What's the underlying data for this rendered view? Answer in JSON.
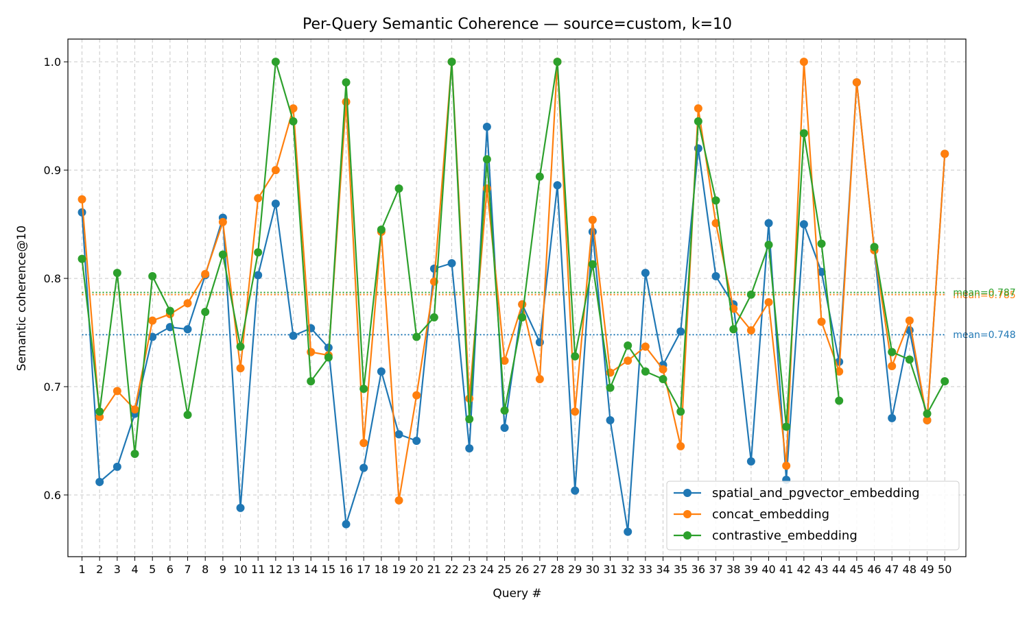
{
  "chart_data": {
    "type": "line",
    "title": "Per-Query Semantic Coherence — source=custom, k=10",
    "xlabel": "Query #",
    "ylabel": "Semantic coherence@10",
    "x": [
      1,
      2,
      3,
      4,
      5,
      6,
      7,
      8,
      9,
      10,
      11,
      12,
      13,
      14,
      15,
      16,
      17,
      18,
      19,
      20,
      21,
      22,
      23,
      24,
      25,
      26,
      27,
      28,
      29,
      30,
      31,
      32,
      33,
      34,
      35,
      36,
      37,
      38,
      39,
      40,
      41,
      42,
      43,
      44,
      45,
      46,
      47,
      48,
      49,
      50
    ],
    "xlim": [
      0.2,
      51.2
    ],
    "ylim": [
      0.543,
      1.021
    ],
    "yticks": [
      0.6,
      0.7,
      0.8,
      0.9,
      1.0
    ],
    "ytick_labels": [
      "0.6",
      "0.7",
      "0.8",
      "0.9",
      "1.0"
    ],
    "grid": true,
    "legend_position": "bottom-right",
    "series": [
      {
        "name": "spatial_and_pgvector_embedding",
        "color": "#1f77b4",
        "values": [
          0.861,
          0.612,
          0.626,
          0.675,
          0.746,
          0.755,
          0.753,
          0.803,
          0.856,
          0.588,
          0.803,
          0.869,
          0.747,
          0.754,
          0.736,
          0.573,
          0.625,
          0.714,
          0.656,
          0.65,
          0.809,
          0.814,
          0.643,
          0.94,
          0.662,
          0.776,
          0.741,
          0.886,
          0.604,
          0.843,
          0.669,
          0.566,
          0.805,
          0.72,
          0.751,
          0.92,
          0.802,
          0.776,
          0.631,
          0.851,
          0.614,
          0.85,
          0.806,
          0.723,
          0.981,
          0.826,
          0.671,
          0.752,
          0.669,
          0.915
        ],
        "mean": 0.748,
        "mean_label": "mean=0.748"
      },
      {
        "name": "concat_embedding",
        "color": "#ff7f0e",
        "values": [
          0.873,
          0.672,
          0.696,
          0.679,
          0.761,
          0.767,
          0.777,
          0.804,
          0.852,
          0.717,
          0.874,
          0.9,
          0.957,
          0.732,
          0.729,
          0.963,
          0.648,
          0.843,
          0.595,
          0.692,
          0.797,
          1.0,
          0.689,
          0.883,
          0.724,
          0.776,
          0.707,
          1.0,
          0.677,
          0.854,
          0.713,
          0.724,
          0.737,
          0.716,
          0.645,
          0.957,
          0.851,
          0.772,
          0.752,
          0.778,
          0.627,
          1.0,
          0.76,
          0.714,
          0.981,
          0.826,
          0.719,
          0.761,
          0.669,
          0.915
        ],
        "mean": 0.785,
        "mean_label": "mean=0.785"
      },
      {
        "name": "contrastive_embedding",
        "color": "#2ca02c",
        "values": [
          0.818,
          0.677,
          0.805,
          0.638,
          0.802,
          0.77,
          0.674,
          0.769,
          0.822,
          0.737,
          0.824,
          1.0,
          0.945,
          0.705,
          0.727,
          0.981,
          0.698,
          0.845,
          0.883,
          0.746,
          0.764,
          1.0,
          0.67,
          0.91,
          0.678,
          0.764,
          0.894,
          1.0,
          0.728,
          0.813,
          0.699,
          0.738,
          0.714,
          0.707,
          0.677,
          0.945,
          0.872,
          0.753,
          0.785,
          0.831,
          0.663,
          0.934,
          0.832,
          0.687,
          null,
          0.829,
          0.732,
          0.725,
          0.675,
          0.705
        ],
        "mean": 0.787,
        "mean_label": "mean=0.787"
      }
    ]
  }
}
